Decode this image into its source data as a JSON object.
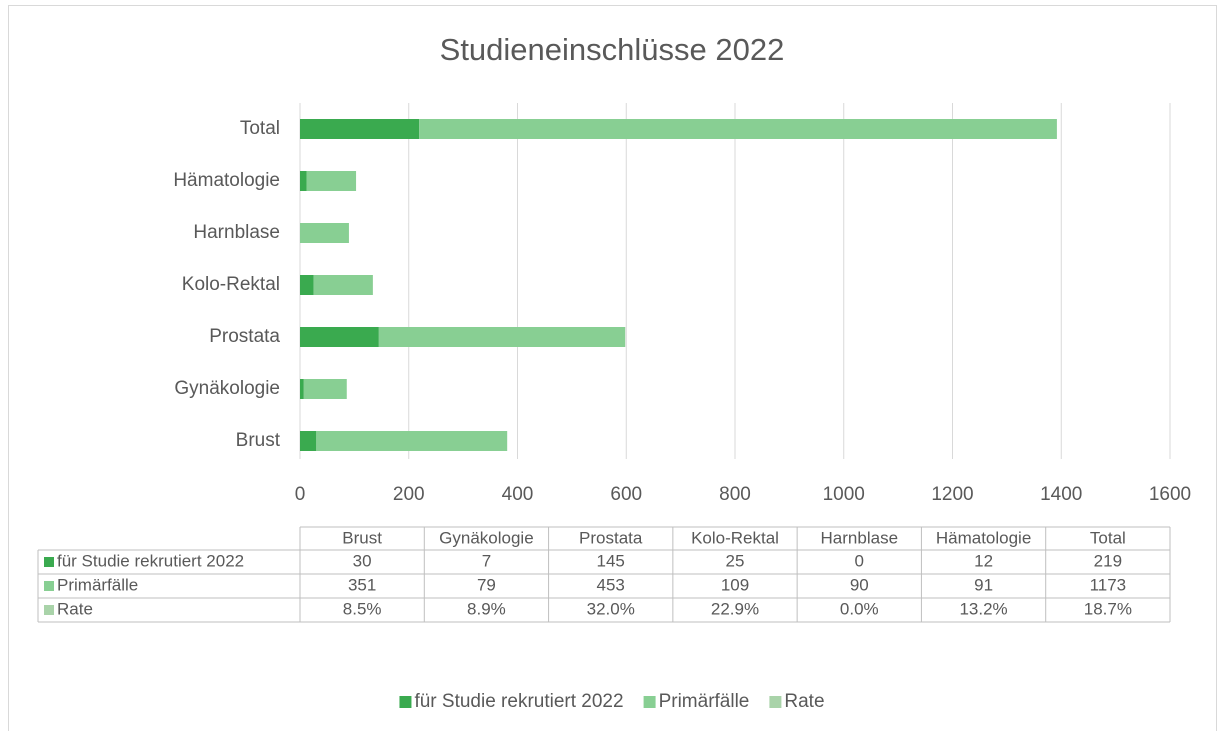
{
  "chart_data": {
    "type": "bar",
    "orientation": "horizontal",
    "stacked": true,
    "title": "Studieneinschlüsse 2022",
    "categories": [
      "Brust",
      "Gynäkologie",
      "Prostata",
      "Kolo-Rektal",
      "Harnblase",
      "Hämatologie",
      "Total"
    ],
    "series": [
      {
        "name": "für Studie rekrutiert 2022",
        "color": "#3aaa4f",
        "values": [
          30,
          7,
          145,
          25,
          0,
          12,
          219
        ]
      },
      {
        "name": "Primärfälle",
        "color": "#88cf93",
        "values": [
          351,
          79,
          453,
          109,
          90,
          91,
          1173
        ]
      },
      {
        "name": "Rate",
        "color": "#a9d3a9",
        "values": [
          0.085,
          0.089,
          0.32,
          0.229,
          0.0,
          0.132,
          0.187
        ],
        "value_labels": [
          "8.5%",
          "8.9%",
          "32.0%",
          "22.9%",
          "0.0%",
          "13.2%",
          "18.7%"
        ]
      }
    ],
    "xlim": [
      0,
      1600
    ],
    "xticks": [
      0,
      200,
      400,
      600,
      800,
      1000,
      1200,
      1400,
      1600
    ],
    "grid": true,
    "legend": "bottom",
    "data_table": true
  }
}
